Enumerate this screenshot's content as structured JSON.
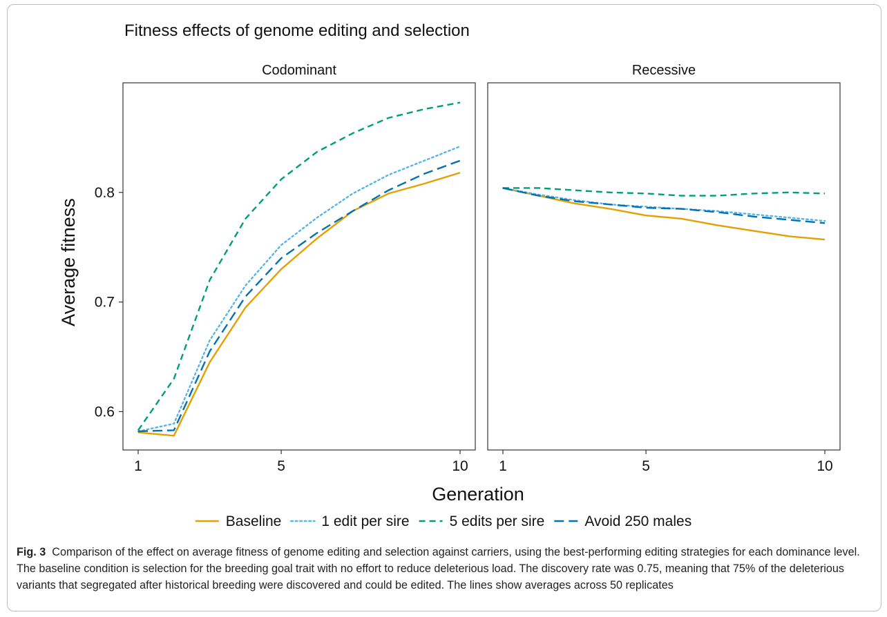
{
  "chart_data": {
    "type": "line",
    "title": "Fitness effects of genome editing and selection",
    "xlabel": "Generation",
    "ylabel": "Average fitness",
    "x": [
      1,
      2,
      3,
      4,
      5,
      6,
      7,
      8,
      9,
      10
    ],
    "xticks": [
      "1",
      "5",
      "10"
    ],
    "xlim": [
      1,
      10
    ],
    "ylim": [
      0.565,
      0.9
    ],
    "yticks": [
      "0.6",
      "0.7",
      "0.8"
    ],
    "legend_position": "bottom",
    "grid": false,
    "panels": [
      {
        "title": "Codominant",
        "series": [
          {
            "name": "Baseline",
            "values": [
              0.581,
              0.578,
              0.645,
              0.695,
              0.73,
              0.758,
              0.783,
              0.799,
              0.808,
              0.818
            ]
          },
          {
            "name": "1 edit per sire",
            "values": [
              0.582,
              0.589,
              0.665,
              0.715,
              0.752,
              0.777,
              0.799,
              0.816,
              0.829,
              0.842
            ]
          },
          {
            "name": "5 edits per sire",
            "values": [
              0.583,
              0.63,
              0.72,
              0.776,
              0.812,
              0.837,
              0.854,
              0.868,
              0.876,
              0.882
            ]
          },
          {
            "name": "Avoid 250 males",
            "values": [
              0.582,
              0.583,
              0.655,
              0.705,
              0.74,
              0.763,
              0.783,
              0.802,
              0.817,
              0.829
            ]
          }
        ]
      },
      {
        "title": "Recessive",
        "series": [
          {
            "name": "Baseline",
            "values": [
              0.804,
              0.797,
              0.79,
              0.785,
              0.779,
              0.776,
              0.77,
              0.765,
              0.76,
              0.757
            ]
          },
          {
            "name": "1 edit per sire",
            "values": [
              0.804,
              0.798,
              0.793,
              0.789,
              0.787,
              0.785,
              0.783,
              0.78,
              0.777,
              0.774
            ]
          },
          {
            "name": "5 edits per sire",
            "values": [
              0.804,
              0.804,
              0.802,
              0.8,
              0.799,
              0.797,
              0.797,
              0.799,
              0.8,
              0.799
            ]
          },
          {
            "name": "Avoid 250 males",
            "values": [
              0.804,
              0.797,
              0.792,
              0.789,
              0.786,
              0.785,
              0.782,
              0.778,
              0.775,
              0.772
            ]
          }
        ]
      }
    ],
    "styles": [
      {
        "name": "Baseline",
        "color": "#E69F00",
        "dash": "solid"
      },
      {
        "name": "1 edit per sire",
        "color": "#56B4E9",
        "dash": "dotted"
      },
      {
        "name": "5 edits per sire",
        "color": "#009E73",
        "dash": "dashed"
      },
      {
        "name": "Avoid 250 males",
        "color": "#0072B2",
        "dash": "long-dashed"
      }
    ]
  },
  "caption": {
    "label": "Fig. 3",
    "text": "Comparison of the effect on average fitness of genome editing and selection against carriers, using the best-performing editing strategies for each dominance level. The baseline condition is selection for the breeding goal trait with no effort to reduce deleterious load. The discovery rate was 0.75, meaning that 75% of the deleterious variants that segregated after historical breeding were discovered and could be edited. The lines show averages across 50 replicates"
  }
}
